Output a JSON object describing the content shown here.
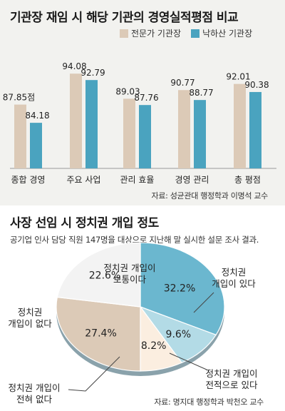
{
  "bar_panel": {
    "title": "기관장 재임 시 해당 기관의 경영실적평점 비교",
    "source": "자료: 성균관대 행정학과 이명석 교수"
  },
  "pie_panel": {
    "title": "사장 선임 시 정치권 개입 정도",
    "subtitle": "공기업 인사 담당 직원 147명을 대상으로 지난해 말 실시한 설문 조사 결과.",
    "source": "자료: 명지대 행정학과 박천오 교수"
  },
  "chart_data": [
    {
      "type": "bar",
      "title": "기관장 재임 시 해당 기관의 경영실적평점 비교",
      "categories": [
        "종합 경영",
        "주요 사업",
        "관리 효율",
        "경영 관리",
        "총 평점"
      ],
      "series": [
        {
          "name": "전문가 기관장",
          "values": [
            87.85,
            94.08,
            89.03,
            90.77,
            92.01
          ],
          "labels": [
            "87.85점",
            "94.08",
            "89.03",
            "90.77",
            "92.01"
          ],
          "color": "#dccab7"
        },
        {
          "name": "낙하산 기관장",
          "values": [
            84.18,
            92.79,
            87.76,
            88.77,
            90.38
          ],
          "labels": [
            "84.18",
            "92.79",
            "87.76",
            "88.77",
            "90.38"
          ],
          "color": "#4aa3bf"
        }
      ],
      "ylim": [
        75,
        100
      ],
      "grid": false,
      "legend": "top-right"
    },
    {
      "type": "pie",
      "title": "사장 선임 시 정치권 개입 정도",
      "slices": [
        {
          "label": "정치권 개입이 있다",
          "value": 32.2,
          "display": "32.2%",
          "color": "#6bb7cf"
        },
        {
          "label": "정치권 개입이 전적으로 있다",
          "value": 9.6,
          "display": "9.6%",
          "color": "#b3dbe6"
        },
        {
          "label": "정치권 개입이 전혀 없다",
          "value": 8.2,
          "display": "8.2%",
          "color": "#fbeee0"
        },
        {
          "label": "정치권 개입이 없다",
          "value": 27.4,
          "display": "27.4%",
          "color": "#dccab7"
        },
        {
          "label": "정치권 개입이 보통이다",
          "value": 22.6,
          "display": "22.6%",
          "color": "#f3f3f3"
        }
      ]
    }
  ]
}
